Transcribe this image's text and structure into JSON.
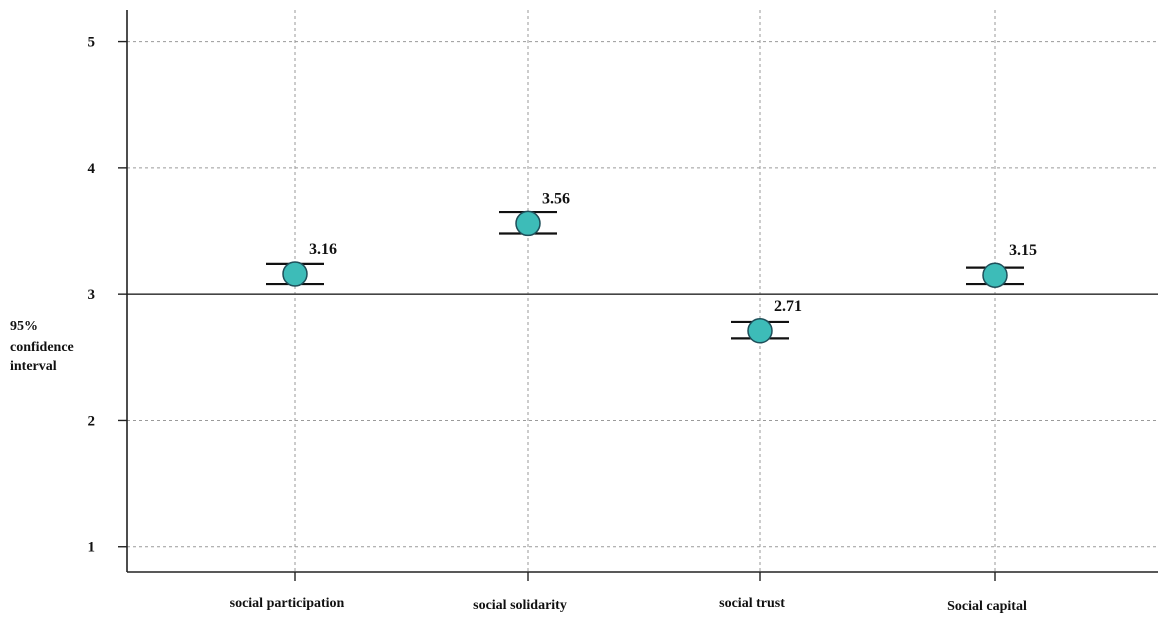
{
  "chart_data": {
    "type": "errorbar",
    "categories": [
      "social participation",
      "social solidarity",
      "social trust",
      "Social capital"
    ],
    "series": [
      {
        "values": [
          3.16,
          3.56,
          2.71,
          3.15
        ],
        "ci_low": [
          3.08,
          3.48,
          2.65,
          3.08
        ],
        "ci_high": [
          3.24,
          3.65,
          2.78,
          3.21
        ],
        "value_labels": [
          "3.16",
          "3.56",
          "2.71",
          "3.15"
        ]
      }
    ],
    "ylabel": [
      "95%",
      "confidence",
      "interval"
    ],
    "ylim": [
      0.8,
      5.25
    ],
    "yticks": [
      1,
      2,
      3,
      4,
      5
    ],
    "ytick_labels": [
      "1",
      "2",
      "3",
      "4",
      "5"
    ],
    "reference_line": 3,
    "grid": true,
    "marker_color": "#3dbcb8",
    "marker_edge_color": "#1f4f5a",
    "grid_color": "#9a9a9a",
    "axis_color": "#222222"
  }
}
